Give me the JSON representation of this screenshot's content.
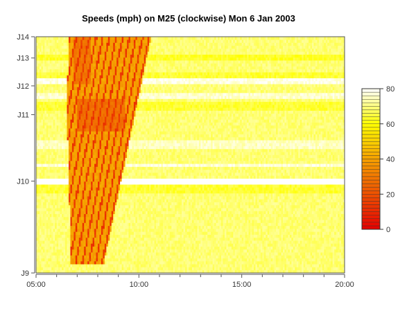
{
  "chart_data": {
    "type": "heatmap",
    "title": "Speeds (mph) on M25 (clockwise) Mon 6 Jan 2003",
    "xlabel": "",
    "ylabel": "",
    "x_ticks": [
      {
        "label": "05:00",
        "hour": 5
      },
      {
        "label": "10:00",
        "hour": 10
      },
      {
        "label": "15:00",
        "hour": 15
      },
      {
        "label": "20:00",
        "hour": 20
      }
    ],
    "x_minor_ticks_hours": [
      6,
      7,
      8,
      9,
      11,
      12,
      13,
      14,
      16,
      17,
      18,
      19
    ],
    "xlim_hours": [
      5,
      20
    ],
    "y_ticks": [
      {
        "label": "J9",
        "pos": 0.0
      },
      {
        "label": "J10",
        "pos": 0.389
      },
      {
        "label": "J11",
        "pos": 0.67
      },
      {
        "label": "J12",
        "pos": 0.792
      },
      {
        "label": "J13",
        "pos": 0.91
      },
      {
        "label": "J14",
        "pos": 1.0
      }
    ],
    "colorbar": {
      "ticks": [
        0,
        20,
        40,
        60,
        80
      ],
      "range": [
        0,
        80
      ],
      "low_color": "#e60000",
      "mid_color": "#f5a000",
      "high_color": "#ffffff"
    },
    "summary": {
      "free_flow_speed_mph": 65,
      "congestion_window_hours": [
        6.5,
        10.6
      ],
      "congestion_min_speed_mph": 10,
      "congested_segment": [
        "J9",
        "J14"
      ]
    }
  }
}
